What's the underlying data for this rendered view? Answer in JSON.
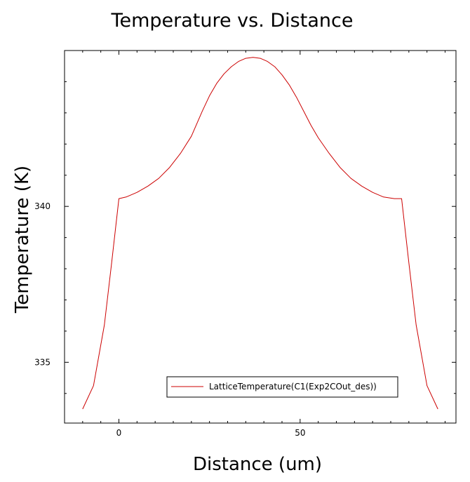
{
  "colors": {
    "series": "#cc0000",
    "axis": "#000000"
  },
  "chart_data": {
    "type": "line",
    "title": "Temperature vs. Distance",
    "xlabel": "Distance (um)",
    "ylabel": "Temperature (K)",
    "xlim": [
      -15,
      93
    ],
    "ylim": [
      333.05,
      345
    ],
    "x_ticks": [
      0,
      50
    ],
    "y_ticks": [
      335,
      340
    ],
    "legend_position": "bottom-right",
    "grid": false,
    "series": [
      {
        "name": "LatticeTemperature(C1(Exp2COut_des))",
        "color": "#cc0000",
        "x": [
          -10,
          -7,
          -4,
          -2,
          0,
          2,
          5,
          8,
          11,
          14,
          17,
          20,
          23,
          25,
          27,
          29,
          31,
          33,
          35,
          37,
          39,
          41,
          43,
          45,
          47,
          49,
          51,
          53,
          55,
          58,
          61,
          64,
          67,
          70,
          73,
          76,
          78,
          80,
          82,
          85,
          88
        ],
        "values": [
          333.5,
          334.25,
          336.2,
          338.2,
          340.25,
          340.3,
          340.45,
          340.65,
          340.9,
          341.25,
          341.7,
          342.25,
          343.05,
          343.55,
          343.95,
          344.25,
          344.48,
          344.65,
          344.75,
          344.78,
          344.75,
          344.65,
          344.48,
          344.22,
          343.9,
          343.5,
          343.05,
          342.6,
          342.2,
          341.7,
          341.25,
          340.9,
          340.65,
          340.45,
          340.3,
          340.25,
          340.25,
          338.2,
          336.2,
          334.25,
          333.5
        ]
      }
    ]
  }
}
